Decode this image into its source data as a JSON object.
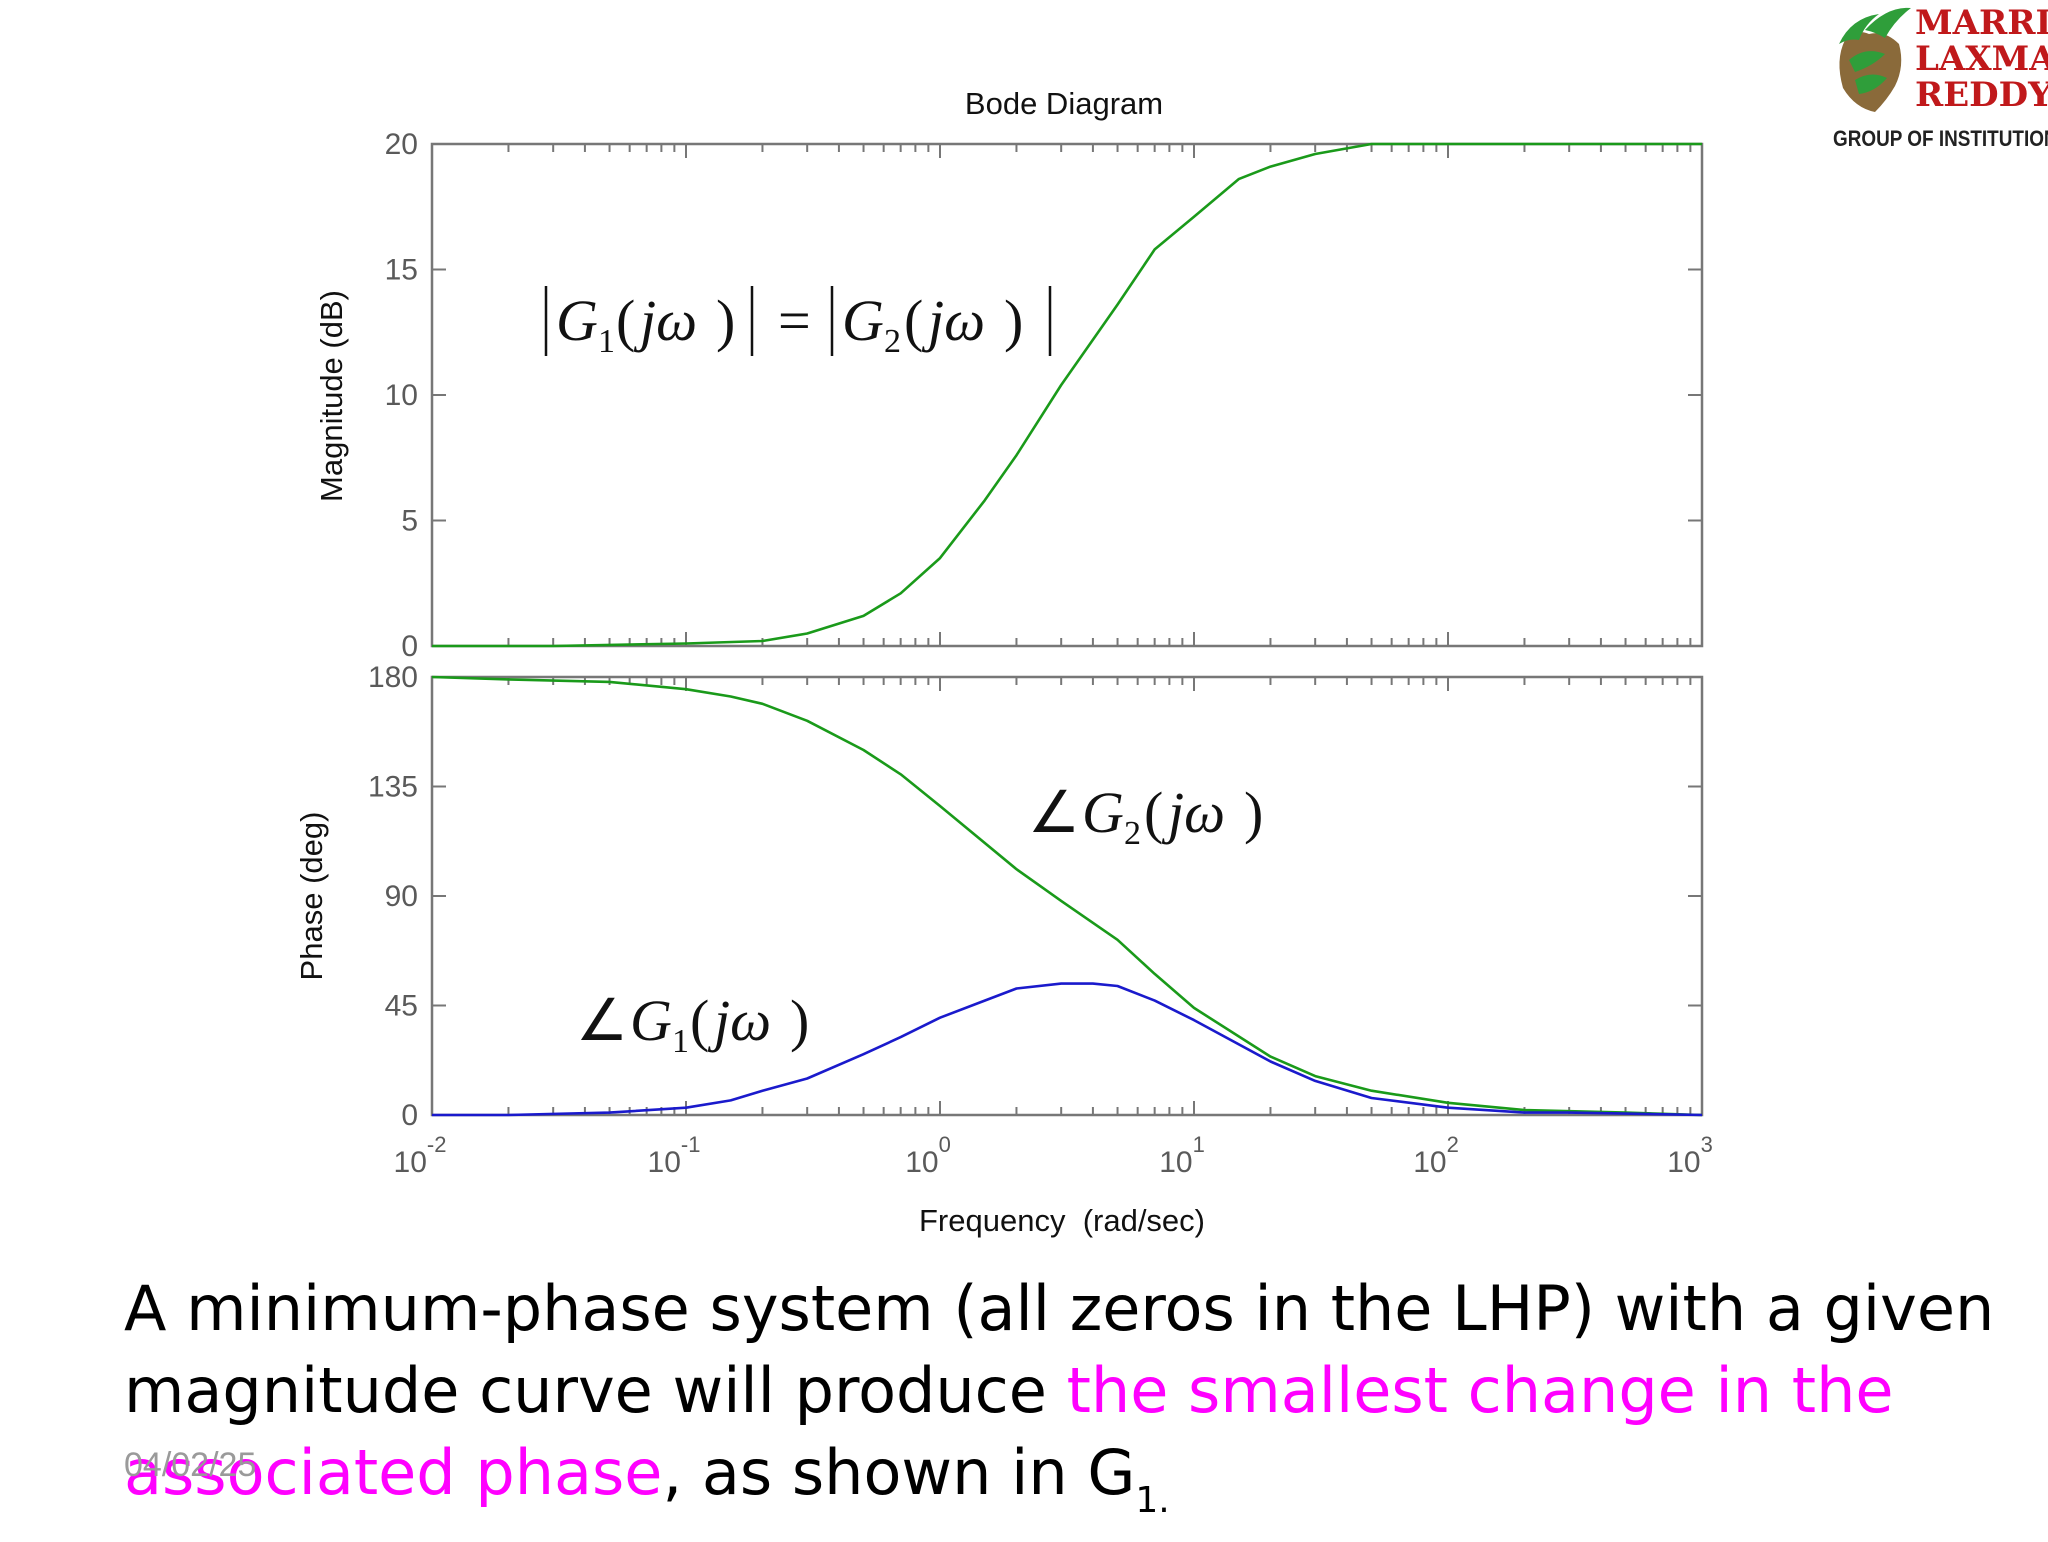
{
  "logo": {
    "line1": "MARRI",
    "line2": "LAXMAN",
    "line3": "REDDY",
    "line4": "GROUP OF INSTITUTIONS",
    "colors": {
      "text": "#c0191b",
      "leaf": "#2f9e3a",
      "map": "#8a6a3a"
    }
  },
  "chart_data": [
    {
      "type": "line",
      "title": "Bode Diagram",
      "ylabel": "Magnitude (dB)",
      "xlabel": "",
      "xscale": "log",
      "xlim": [
        0.01,
        1000
      ],
      "ylim": [
        0,
        20
      ],
      "yticks": [
        "0",
        "5",
        "10",
        "15",
        "20"
      ],
      "grid": false,
      "series": [
        {
          "color": "#1a9a1a",
          "x": [
            0.01,
            0.03,
            0.1,
            0.2,
            0.3,
            0.5,
            0.7,
            1.0,
            1.5,
            2,
            3,
            4,
            5,
            7,
            10,
            15,
            20,
            30,
            50,
            100,
            1000
          ],
          "y": [
            0.0,
            0.0,
            0.1,
            0.2,
            0.5,
            1.2,
            2.1,
            3.5,
            5.8,
            7.6,
            10.4,
            12.2,
            13.6,
            15.8,
            17.1,
            18.6,
            19.1,
            19.6,
            20.0,
            20.0,
            20.0
          ]
        }
      ],
      "annotation": "|G1(jω)| = |G2(jω)|"
    },
    {
      "type": "line",
      "title": "",
      "ylabel": "Phase (deg)",
      "xlabel": "Frequency  (rad/sec)",
      "xscale": "log",
      "xlim": [
        0.01,
        1000
      ],
      "ylim": [
        0,
        180
      ],
      "yticks": [
        "0",
        "45",
        "90",
        "135",
        "180"
      ],
      "xticks": [
        "10-2",
        "10-1",
        "100",
        "101",
        "102",
        "103"
      ],
      "grid": false,
      "series": [
        {
          "label": "∠G2(jω)",
          "color": "#1a9a1a",
          "x": [
            0.01,
            0.02,
            0.05,
            0.1,
            0.15,
            0.2,
            0.3,
            0.5,
            0.7,
            1,
            2,
            3,
            5,
            7,
            10,
            20,
            30,
            50,
            100,
            200,
            500,
            1000
          ],
          "y": [
            180,
            179,
            178,
            175,
            172,
            169,
            162,
            150,
            140,
            127,
            101,
            88,
            72,
            58,
            44,
            24,
            16,
            10,
            5,
            2,
            1,
            0
          ]
        },
        {
          "label": "∠G1(jω)",
          "color": "#1a1acc",
          "x": [
            0.01,
            0.02,
            0.05,
            0.1,
            0.15,
            0.2,
            0.3,
            0.5,
            0.7,
            1,
            1.5,
            2,
            3,
            4,
            5,
            7,
            10,
            20,
            30,
            50,
            100,
            200,
            300,
            1000
          ],
          "y": [
            0,
            0,
            1,
            3,
            6,
            10,
            15,
            25,
            32,
            40,
            47,
            52,
            54,
            54,
            53,
            47,
            39,
            22,
            14,
            7,
            3,
            1,
            1,
            0
          ]
        }
      ]
    }
  ],
  "caption": {
    "part1": "A minimum-phase system (all zeros in the LHP) with a given magnitude curve will produce ",
    "highlight": "the smallest change in the associated phase",
    "part2": ", as shown in G",
    "sub": "1.",
    "highlight_color": "#ff00ff"
  },
  "date": "04/02/25"
}
